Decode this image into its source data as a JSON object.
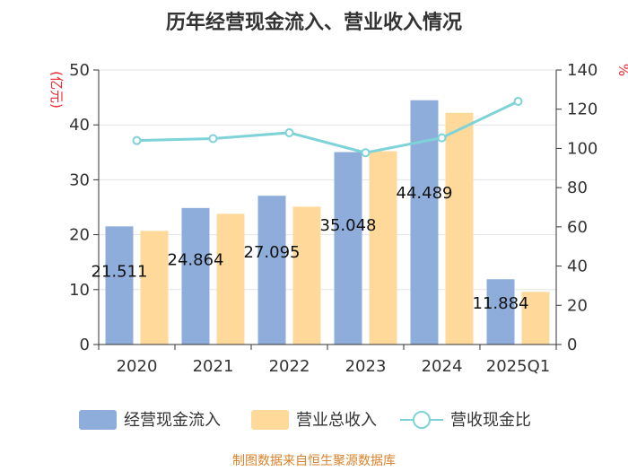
{
  "chart_data": {
    "type": "bar",
    "title": "历年经营现金流入、营业收入情况",
    "categories": [
      "2020",
      "2021",
      "2022",
      "2023",
      "2024",
      "2025Q1"
    ],
    "series": [
      {
        "name": "经营现金流入",
        "type": "bar",
        "axis": "left",
        "color": "#8EADDB",
        "values": [
          21.511,
          24.864,
          27.095,
          35.048,
          44.489,
          11.884
        ]
      },
      {
        "name": "营业总收入",
        "type": "bar",
        "axis": "left",
        "color": "#FFD999",
        "values": [
          20.7,
          23.8,
          25.1,
          35.2,
          42.2,
          9.6
        ]
      },
      {
        "name": "营收现金比",
        "type": "line",
        "axis": "right",
        "color": "#7ED3D8",
        "values": [
          104,
          105,
          108,
          97.8,
          105.4,
          124
        ]
      }
    ],
    "data_labels": [
      "21.511",
      "24.864",
      "27.095",
      "35.048",
      "44.489",
      "11.884"
    ],
    "y_left": {
      "label": "(亿元)",
      "min": 0,
      "max": 50,
      "ticks": [
        0,
        10,
        20,
        30,
        40,
        50
      ]
    },
    "y_right": {
      "label": "%",
      "min": 0,
      "max": 140,
      "ticks": [
        0,
        20,
        40,
        60,
        80,
        100,
        120,
        140
      ]
    },
    "grid": true,
    "legend_position": "bottom",
    "source": "制图数据来自恒生聚源数据库",
    "axis_label_color": "#E8262B",
    "source_color": "#D9822B",
    "axis_color": "#333333"
  }
}
